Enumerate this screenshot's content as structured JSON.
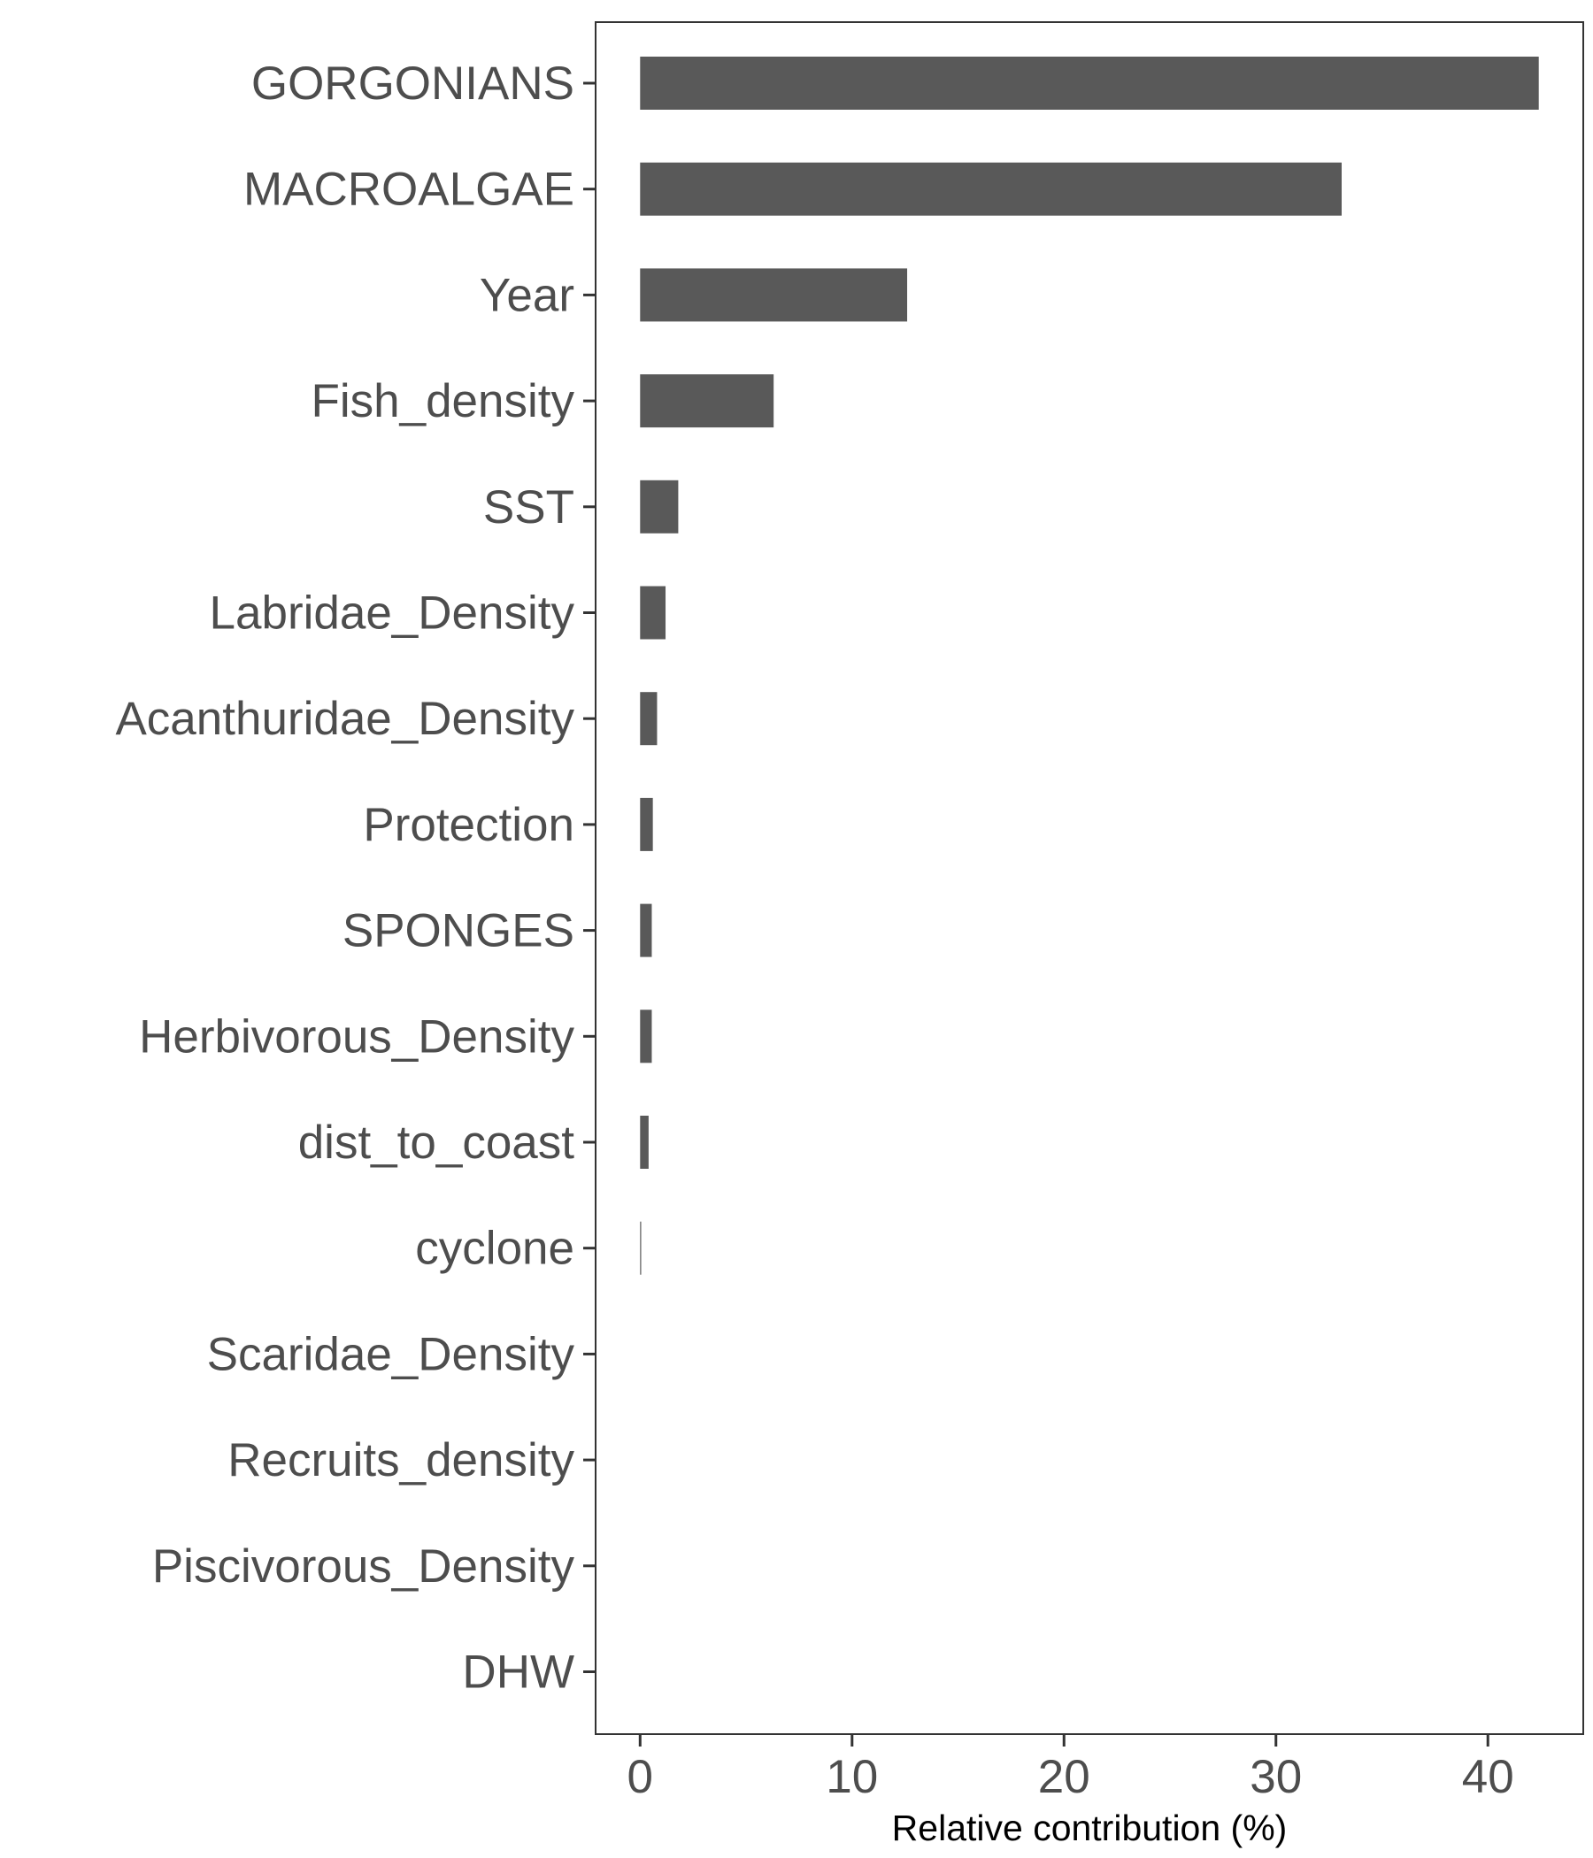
{
  "chart_data": {
    "type": "bar",
    "orientation": "horizontal",
    "categories": [
      "GORGONIANS",
      "MACROALGAE",
      "Year",
      "Fish_density",
      "SST",
      "Labridae_Density",
      "Acanthuridae_Density",
      "Protection",
      "SPONGES",
      "Herbivorous_Density",
      "dist_to_coast",
      "cyclone",
      "Scaridae_Density",
      "Recruits_density",
      "Piscivorous_Density",
      "DHW"
    ],
    "values": [
      42.4,
      33.1,
      12.6,
      6.3,
      1.8,
      1.2,
      0.8,
      0.6,
      0.55,
      0.55,
      0.4,
      0.05,
      0,
      0,
      0,
      0
    ],
    "title": "",
    "xlabel": "Relative contribution (%)",
    "ylabel": "",
    "xlim": [
      -2.1,
      44.5
    ],
    "xticks": [
      "0",
      "10",
      "20",
      "30",
      "40"
    ],
    "xtick_values": [
      0,
      10,
      20,
      30,
      40
    ],
    "grid": false,
    "bar_color": "#595959",
    "axis_color": "#333333",
    "label_color": "#4d4d4d"
  }
}
